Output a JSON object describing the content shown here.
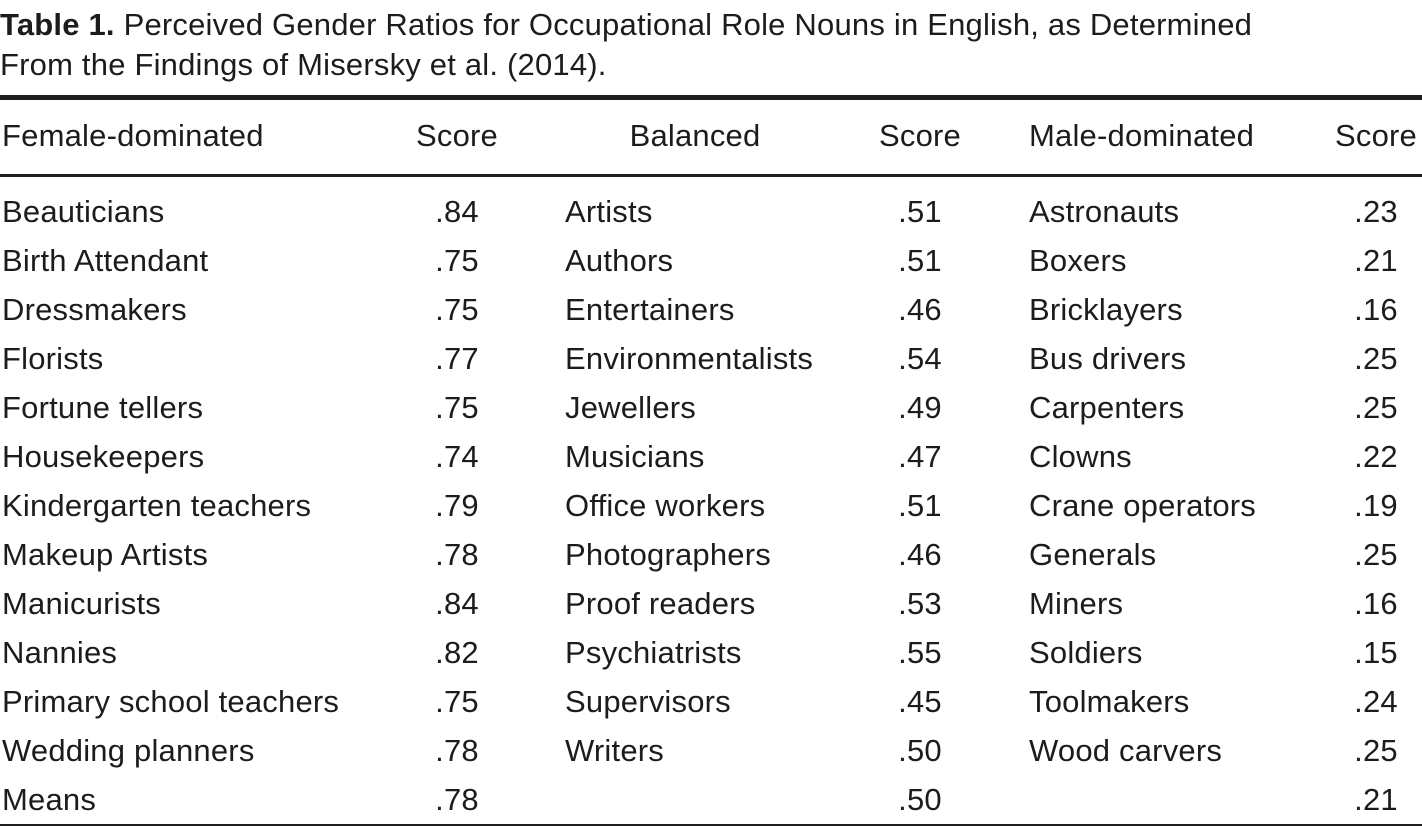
{
  "caption": {
    "label": "Table 1.",
    "line1_rest": "Perceived Gender Ratios for Occupational Role Nouns in English, as Determined",
    "line2": "From the Findings of Misersky et al. (2014)."
  },
  "table": {
    "columns": [
      "Female-dominated",
      "Score",
      "Balanced",
      "Score",
      "Male-dominated",
      "Score"
    ],
    "rows": [
      [
        "Beauticians",
        ".84",
        "Artists",
        ".51",
        "Astronauts",
        ".23"
      ],
      [
        "Birth Attendant",
        ".75",
        "Authors",
        ".51",
        "Boxers",
        ".21"
      ],
      [
        "Dressmakers",
        ".75",
        "Entertainers",
        ".46",
        "Bricklayers",
        ".16"
      ],
      [
        "Florists",
        ".77",
        "Environmentalists",
        ".54",
        "Bus drivers",
        ".25"
      ],
      [
        "Fortune tellers",
        ".75",
        "Jewellers",
        ".49",
        "Carpenters",
        ".25"
      ],
      [
        "Housekeepers",
        ".74",
        "Musicians",
        ".47",
        "Clowns",
        ".22"
      ],
      [
        "Kindergarten teachers",
        ".79",
        "Office workers",
        ".51",
        "Crane operators",
        ".19"
      ],
      [
        "Makeup Artists",
        ".78",
        "Photographers",
        ".46",
        "Generals",
        ".25"
      ],
      [
        "Manicurists",
        ".84",
        "Proof readers",
        ".53",
        "Miners",
        ".16"
      ],
      [
        "Nannies",
        ".82",
        "Psychiatrists",
        ".55",
        "Soldiers",
        ".15"
      ],
      [
        "Primary school teachers",
        ".75",
        "Supervisors",
        ".45",
        "Toolmakers",
        ".24"
      ],
      [
        "Wedding planners",
        ".78",
        "Writers",
        ".50",
        "Wood carvers",
        ".25"
      ],
      [
        "Means",
        ".78",
        "",
        ".50",
        "",
        ".21"
      ]
    ]
  },
  "colors": {
    "text": "#1c1c1c",
    "rule": "#1e1e1e",
    "background": "#ffffff"
  }
}
